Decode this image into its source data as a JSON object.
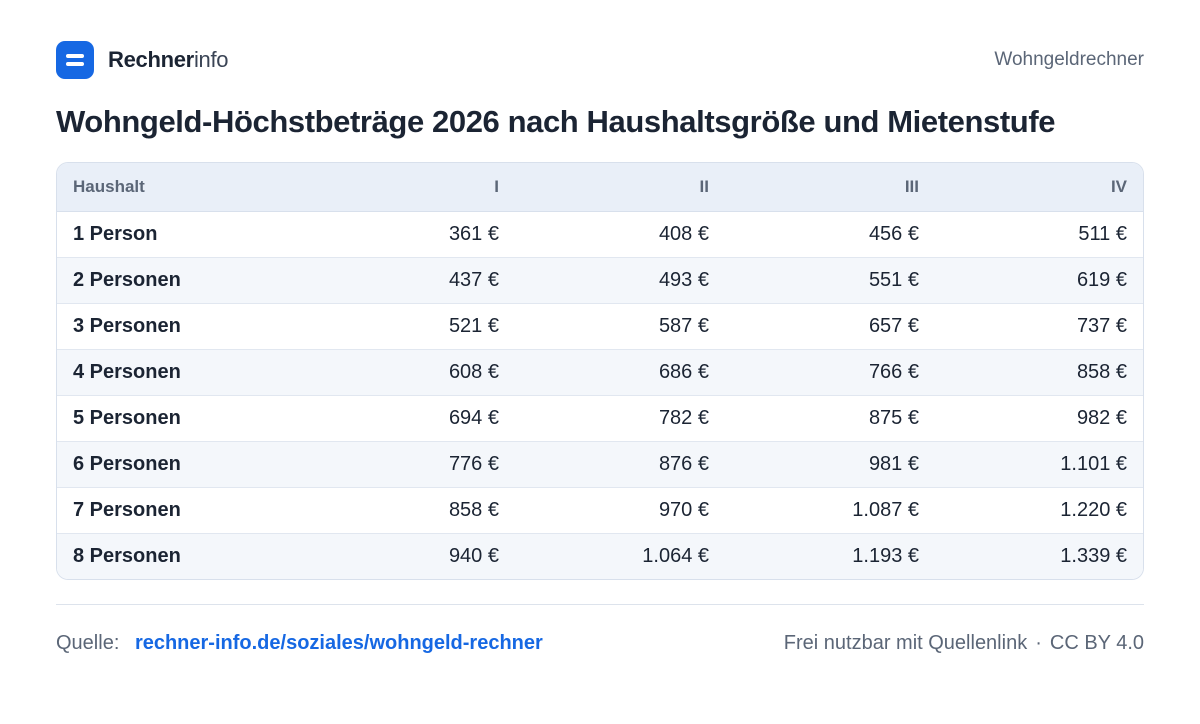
{
  "header": {
    "brand_strong": "Rechner",
    "brand_light": "info",
    "right_label": "Wohngeldrechner",
    "logo_icon": "rechnerinfo-logo-icon",
    "accent_color": "#1668e3"
  },
  "title": "Wohngeld-Höchstbeträge 2026 nach Haushaltsgröße und Mietenstufe",
  "table": {
    "headers": [
      "Haushalt",
      "I",
      "II",
      "III",
      "IV"
    ],
    "rows": [
      [
        "1 Person",
        "361 €",
        "408 €",
        "456 €",
        "511 €"
      ],
      [
        "2 Personen",
        "437 €",
        "493 €",
        "551 €",
        "619 €"
      ],
      [
        "3 Personen",
        "521 €",
        "587 €",
        "657 €",
        "737 €"
      ],
      [
        "4 Personen",
        "608 €",
        "686 €",
        "766 €",
        "858 €"
      ],
      [
        "5 Personen",
        "694 €",
        "782 €",
        "875 €",
        "982 €"
      ],
      [
        "6 Personen",
        "776 €",
        "876 €",
        "981 €",
        "1.101 €"
      ],
      [
        "7 Personen",
        "858 €",
        "970 €",
        "1.087 €",
        "1.220 €"
      ],
      [
        "8 Personen",
        "940 €",
        "1.064 €",
        "1.193 €",
        "1.339 €"
      ]
    ]
  },
  "footer": {
    "source_label": "Quelle:",
    "source_link": "rechner-info.de/soziales/wohngeld-rechner",
    "license_text": "Frei nutzbar mit Quellenlink",
    "separator": "·",
    "license": "CC BY 4.0"
  }
}
